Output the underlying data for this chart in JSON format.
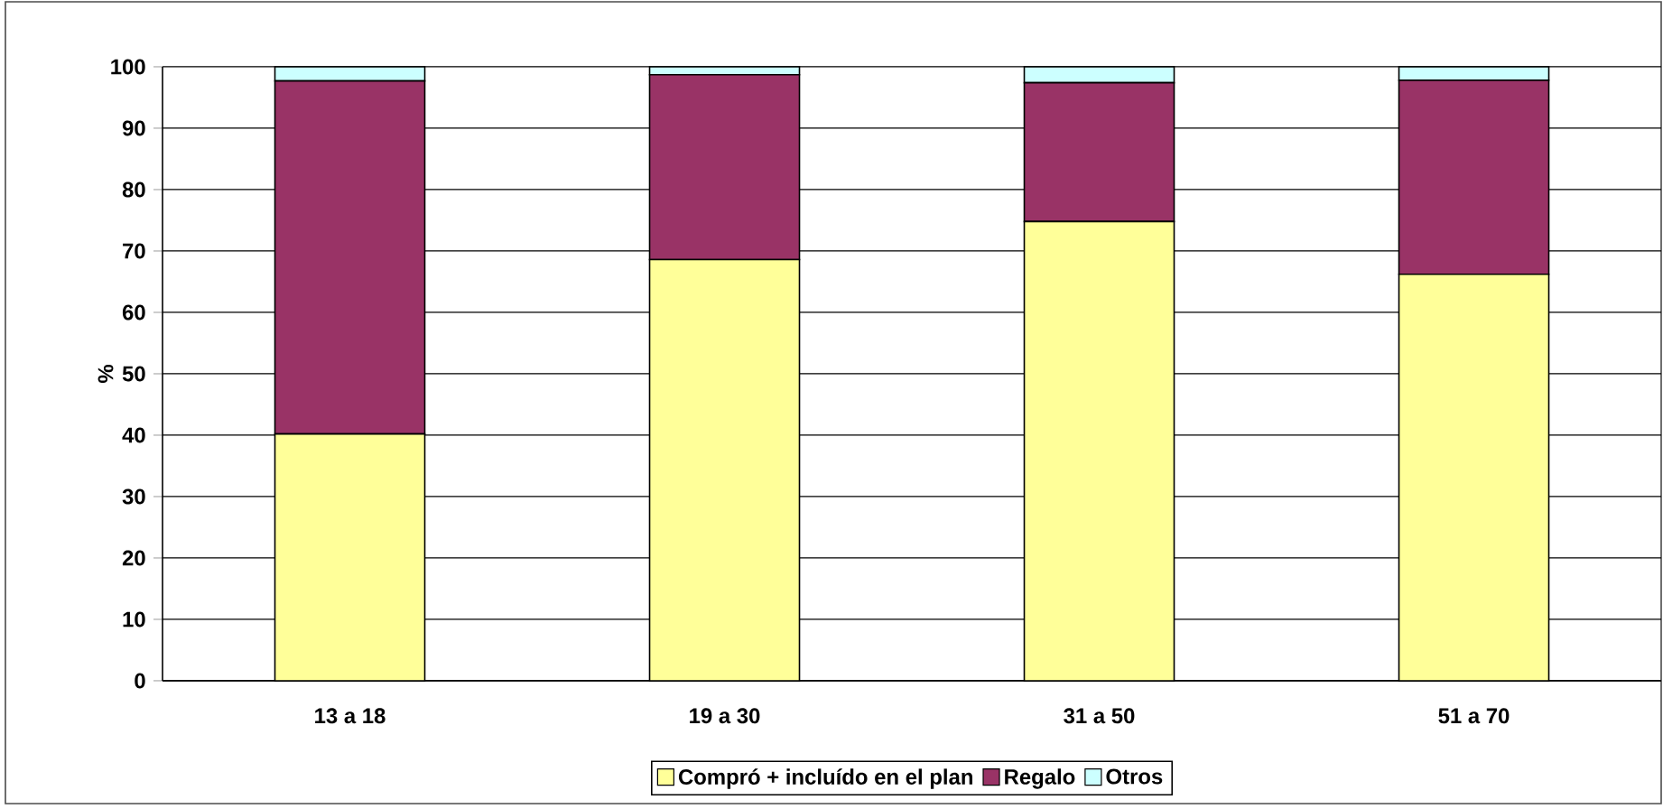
{
  "chart_data": {
    "type": "bar",
    "stacked": true,
    "ylabel": "%",
    "categories": [
      "13 a 18",
      "19 a 30",
      "31 a 50",
      "51 a 70"
    ],
    "series": [
      {
        "name": "Compró + incluído en el plan",
        "color": "#ffff99",
        "values": [
          40.2,
          68.6,
          74.8,
          66.2
        ]
      },
      {
        "name": "Regalo",
        "color": "#993366",
        "values": [
          57.5,
          30.1,
          22.6,
          31.6
        ]
      },
      {
        "name": "Otros",
        "color": "#ccffff",
        "values": [
          2.3,
          1.3,
          2.6,
          2.2
        ]
      }
    ],
    "ylim": [
      0,
      100
    ],
    "yticks": [
      0,
      10,
      20,
      30,
      40,
      50,
      60,
      70,
      80,
      90,
      100
    ],
    "grid": "y",
    "legend": "bottom"
  }
}
